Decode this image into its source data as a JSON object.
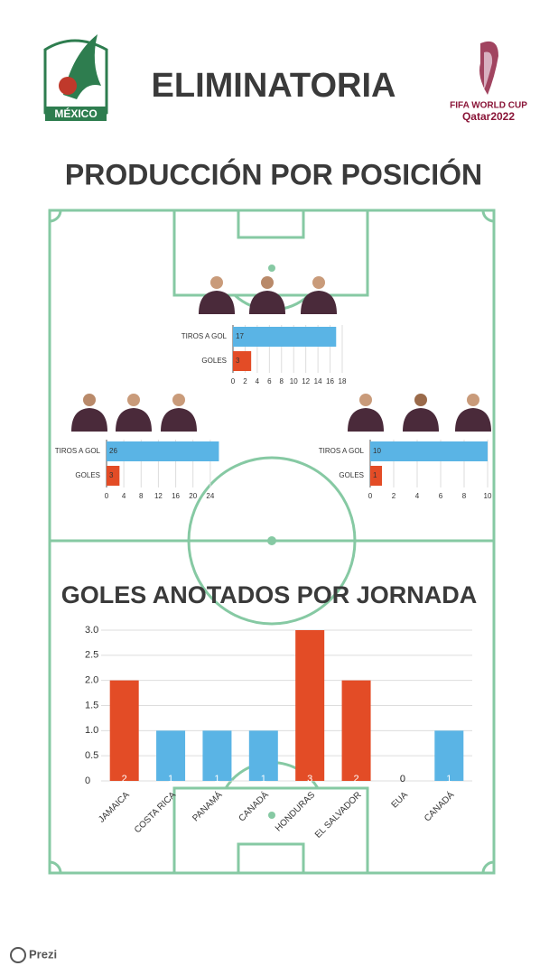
{
  "header": {
    "title": "ELIMINATORIA",
    "subtitle": "PRODUCCIÓN POR POSICIÓN",
    "crest_text": "MÉXICO",
    "cup_text": "FIFA WORLD CUP",
    "cup_host": "Qatar2022"
  },
  "footer": {
    "brand": "Prezi"
  },
  "chart_data": [
    {
      "type": "hbar",
      "categories": [
        "TIROS A GOL",
        "GOLES"
      ],
      "values": [
        17,
        3
      ],
      "colors": [
        "#5ab4e5",
        "#e34c26"
      ],
      "xlim": [
        0,
        18
      ],
      "xticks": [
        0,
        2,
        4,
        6,
        8,
        10,
        12,
        14,
        16,
        18
      ],
      "grid": true
    },
    {
      "type": "hbar",
      "categories": [
        "TIROS A GOL",
        "GOLES"
      ],
      "values": [
        26,
        3
      ],
      "colors": [
        "#5ab4e5",
        "#e34c26"
      ],
      "xlim": [
        0,
        28
      ],
      "xticks": [
        0,
        4,
        8,
        12,
        16,
        20,
        24
      ],
      "grid": true
    },
    {
      "type": "hbar",
      "categories": [
        "TIROS A GOL",
        "GOLES"
      ],
      "values": [
        10,
        1
      ],
      "colors": [
        "#5ab4e5",
        "#e34c26"
      ],
      "xlim": [
        0,
        10
      ],
      "xticks": [
        0,
        2,
        4,
        6,
        8,
        10
      ],
      "grid": true
    },
    {
      "type": "bar",
      "title": "GOLES ANOTADOS POR JORNADA",
      "categories": [
        "JAMAICA",
        "COSTA RICA",
        "PANAMÁ",
        "CANADÁ",
        "HONDURAS",
        "EL SALVADOR",
        "EUA",
        "CANADÁ"
      ],
      "values": [
        2,
        1,
        1,
        1,
        3,
        2,
        0,
        1
      ],
      "colors": [
        "#e34c26",
        "#5ab4e5",
        "#5ab4e5",
        "#5ab4e5",
        "#e34c26",
        "#e34c26",
        "#5ab4e5",
        "#5ab4e5"
      ],
      "ylim": [
        0,
        3
      ],
      "yticks": [
        0,
        0.5,
        {
          "value": 1,
          "label": "1.0"
        },
        1.5,
        {
          "value": 2,
          "label": "2.0"
        },
        2.5,
        {
          "value": 3,
          "label": "3.0"
        }
      ],
      "grid": true
    }
  ]
}
